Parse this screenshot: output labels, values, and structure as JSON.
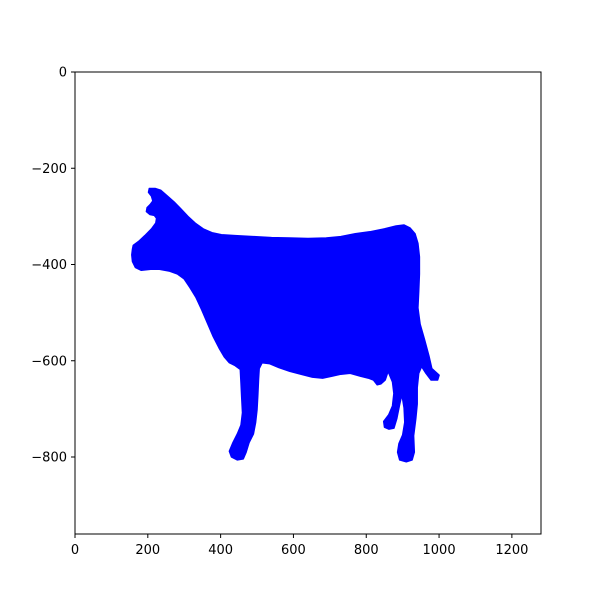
{
  "chart_data": {
    "type": "scatter",
    "title": "",
    "xlabel": "",
    "ylabel": "",
    "xlim": [
      0,
      1280
    ],
    "ylim": [
      -960,
      0
    ],
    "x_ticks": [
      0,
      200,
      400,
      600,
      800,
      1000,
      1200
    ],
    "y_ticks": [
      0,
      -200,
      -400,
      -600,
      -800
    ],
    "x_tick_labels": [
      "0",
      "200",
      "400",
      "600",
      "800",
      "1000",
      "1200"
    ],
    "y_tick_labels": [
      "0",
      "−200",
      "−400",
      "−600",
      "−800"
    ],
    "grid": false,
    "legend": "none",
    "series": [
      {
        "color": "#0000ff",
        "shape": "cow silhouette (dense point cloud)",
        "outline": [
          [
            160,
            -360
          ],
          [
            175,
            -352
          ],
          [
            192,
            -340
          ],
          [
            210,
            -326
          ],
          [
            222,
            -314
          ],
          [
            224,
            -304
          ],
          [
            218,
            -298
          ],
          [
            206,
            -296
          ],
          [
            196,
            -290
          ],
          [
            198,
            -282
          ],
          [
            206,
            -276
          ],
          [
            214,
            -268
          ],
          [
            210,
            -258
          ],
          [
            202,
            -250
          ],
          [
            204,
            -242
          ],
          [
            220,
            -242
          ],
          [
            236,
            -246
          ],
          [
            254,
            -258
          ],
          [
            272,
            -270
          ],
          [
            290,
            -284
          ],
          [
            310,
            -300
          ],
          [
            330,
            -314
          ],
          [
            352,
            -326
          ],
          [
            376,
            -334
          ],
          [
            402,
            -338
          ],
          [
            440,
            -340
          ],
          [
            490,
            -342
          ],
          [
            540,
            -344
          ],
          [
            590,
            -345
          ],
          [
            640,
            -346
          ],
          [
            690,
            -345
          ],
          [
            730,
            -342
          ],
          [
            770,
            -336
          ],
          [
            810,
            -332
          ],
          [
            850,
            -326
          ],
          [
            882,
            -320
          ],
          [
            904,
            -318
          ],
          [
            920,
            -324
          ],
          [
            934,
            -336
          ],
          [
            942,
            -356
          ],
          [
            946,
            -384
          ],
          [
            946,
            -420
          ],
          [
            944,
            -456
          ],
          [
            942,
            -490
          ],
          [
            948,
            -524
          ],
          [
            960,
            -556
          ],
          [
            972,
            -590
          ],
          [
            980,
            -616
          ],
          [
            1000,
            -630
          ],
          [
            996,
            -640
          ],
          [
            978,
            -640
          ],
          [
            964,
            -626
          ],
          [
            952,
            -612
          ],
          [
            944,
            -626
          ],
          [
            940,
            -656
          ],
          [
            940,
            -690
          ],
          [
            936,
            -720
          ],
          [
            930,
            -756
          ],
          [
            932,
            -790
          ],
          [
            926,
            -806
          ],
          [
            910,
            -810
          ],
          [
            892,
            -806
          ],
          [
            886,
            -790
          ],
          [
            890,
            -772
          ],
          [
            900,
            -754
          ],
          [
            906,
            -728
          ],
          [
            904,
            -698
          ],
          [
            898,
            -670
          ],
          [
            892,
            -690
          ],
          [
            884,
            -720
          ],
          [
            876,
            -740
          ],
          [
            862,
            -742
          ],
          [
            850,
            -738
          ],
          [
            848,
            -726
          ],
          [
            862,
            -712
          ],
          [
            872,
            -694
          ],
          [
            876,
            -668
          ],
          [
            872,
            -644
          ],
          [
            860,
            -622
          ],
          [
            852,
            -640
          ],
          [
            840,
            -648
          ],
          [
            830,
            -650
          ],
          [
            820,
            -640
          ],
          [
            806,
            -636
          ],
          [
            784,
            -632
          ],
          [
            756,
            -626
          ],
          [
            730,
            -628
          ],
          [
            706,
            -632
          ],
          [
            680,
            -636
          ],
          [
            652,
            -634
          ],
          [
            620,
            -628
          ],
          [
            590,
            -622
          ],
          [
            560,
            -614
          ],
          [
            534,
            -606
          ],
          [
            514,
            -604
          ],
          [
            506,
            -616
          ],
          [
            504,
            -640
          ],
          [
            502,
            -672
          ],
          [
            500,
            -702
          ],
          [
            496,
            -728
          ],
          [
            490,
            -752
          ],
          [
            478,
            -770
          ],
          [
            470,
            -790
          ],
          [
            462,
            -804
          ],
          [
            446,
            -806
          ],
          [
            430,
            -800
          ],
          [
            424,
            -788
          ],
          [
            434,
            -770
          ],
          [
            446,
            -752
          ],
          [
            456,
            -734
          ],
          [
            460,
            -708
          ],
          [
            458,
            -676
          ],
          [
            456,
            -646
          ],
          [
            454,
            -618
          ],
          [
            440,
            -610
          ],
          [
            424,
            -604
          ],
          [
            410,
            -592
          ],
          [
            396,
            -574
          ],
          [
            380,
            -550
          ],
          [
            364,
            -522
          ],
          [
            348,
            -494
          ],
          [
            332,
            -468
          ],
          [
            316,
            -448
          ],
          [
            300,
            -430
          ],
          [
            282,
            -420
          ],
          [
            260,
            -414
          ],
          [
            232,
            -410
          ],
          [
            208,
            -410
          ],
          [
            182,
            -412
          ],
          [
            166,
            -406
          ],
          [
            158,
            -394
          ],
          [
            156,
            -380
          ],
          [
            158,
            -368
          ]
        ]
      }
    ]
  }
}
